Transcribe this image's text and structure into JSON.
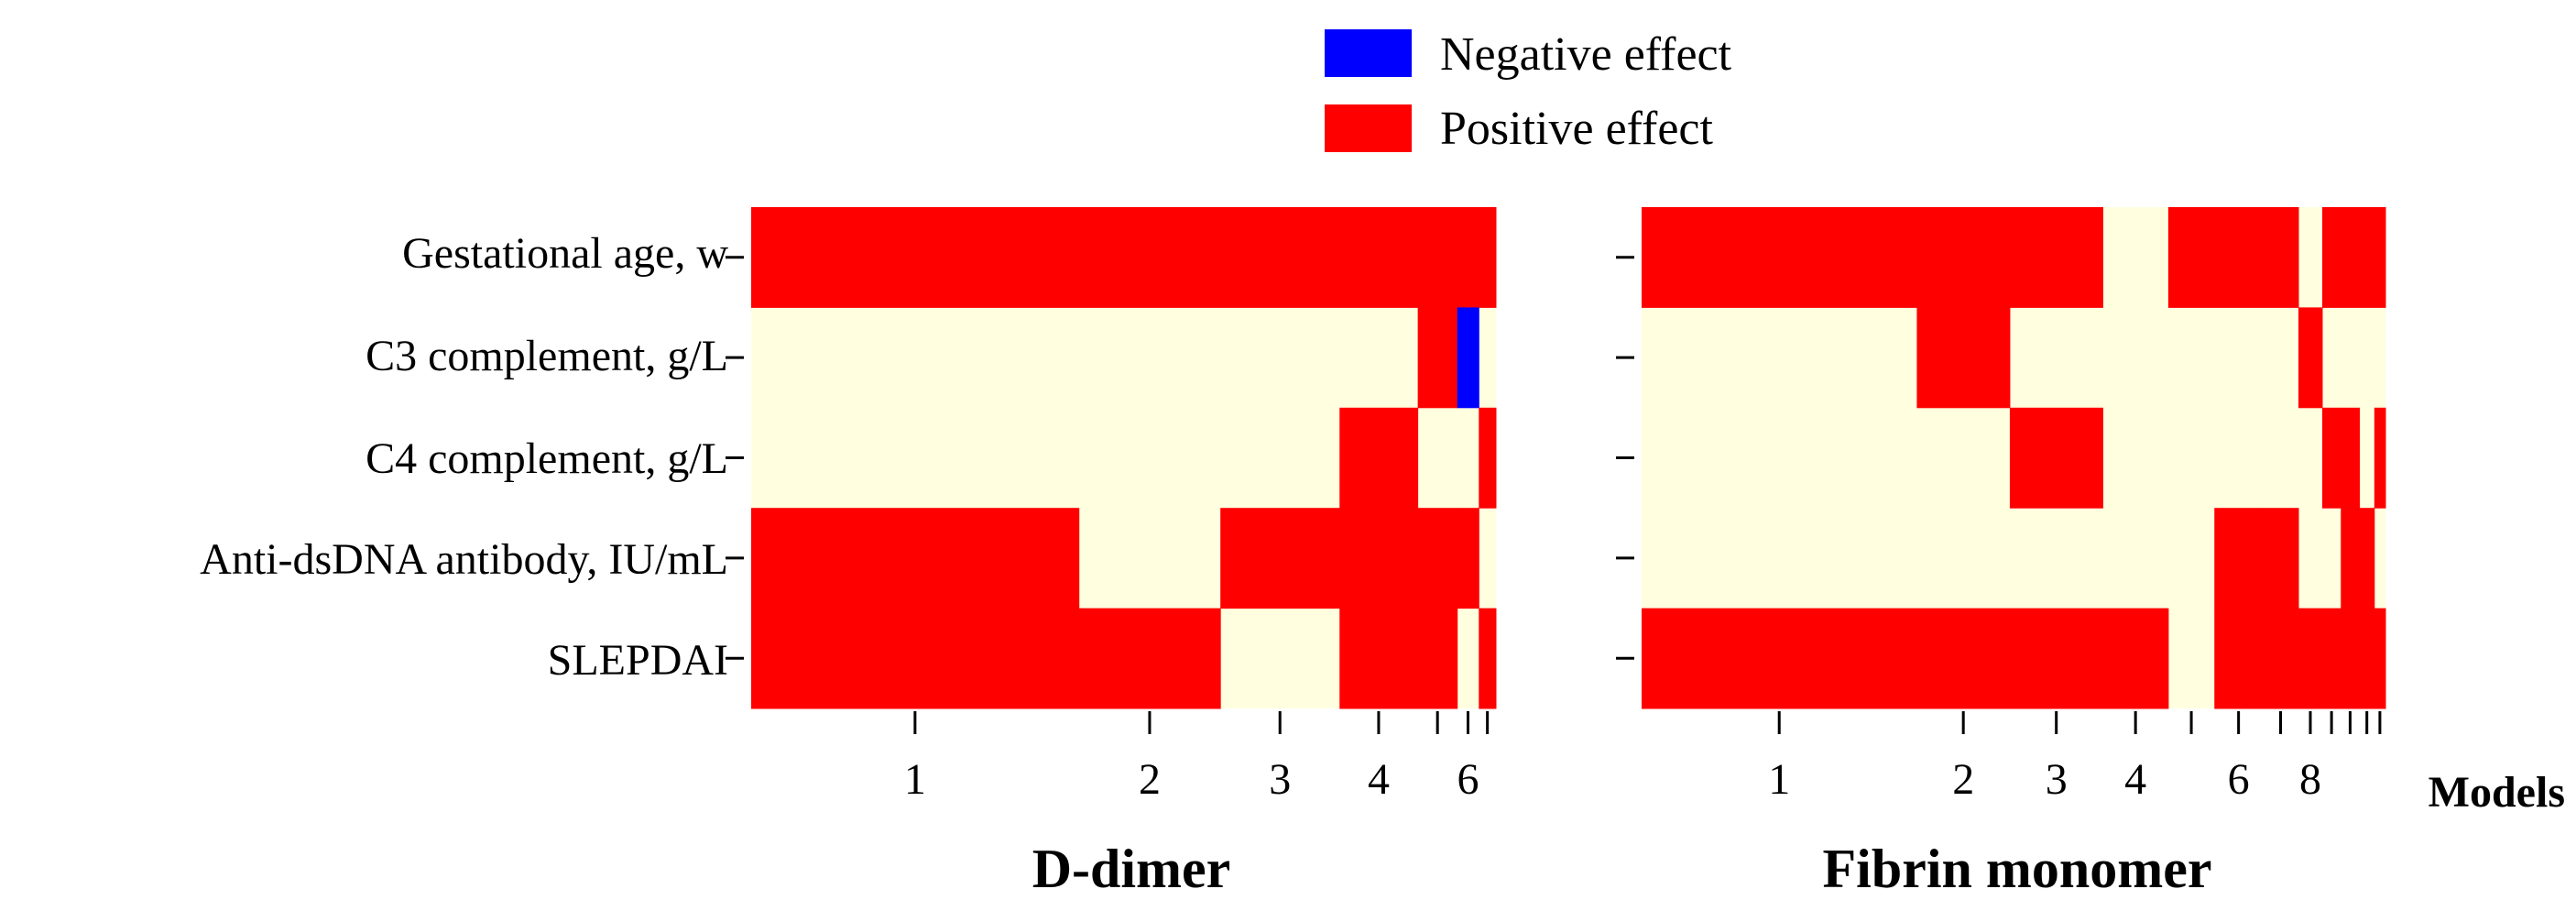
{
  "chart_data": {
    "type": "heatmap",
    "description_label": "Models",
    "legend": {
      "placement": "top-center",
      "entries": [
        {
          "key": "negative",
          "label": "Negative effect",
          "color": "#0000ff"
        },
        {
          "key": "positive",
          "label": "Positive effect",
          "color": "#ff0000"
        }
      ]
    },
    "background_color": "#ffffe0",
    "variables": [
      "Gestational age, w",
      "C3 complement, g/L",
      "C4 complement, g/L",
      "Anti-dsDNA antibody, IU/mL",
      "SLEPDAI"
    ],
    "xlabel": "Models",
    "panels": [
      {
        "title": "D-dimer",
        "tick_labels": [
          "1",
          "2",
          "3",
          "4",
          "6"
        ],
        "tick_models": [
          1,
          2,
          3,
          4,
          6
        ],
        "models": [
          {
            "model": 1,
            "cum_prob_start": 0.0,
            "cum_prob_end": 0.44,
            "effects": [
              "positive",
              null,
              null,
              "positive",
              "positive"
            ]
          },
          {
            "model": 2,
            "cum_prob_start": 0.44,
            "cum_prob_end": 0.63,
            "effects": [
              "positive",
              null,
              null,
              null,
              "positive"
            ]
          },
          {
            "model": 3,
            "cum_prob_start": 0.63,
            "cum_prob_end": 0.79,
            "effects": [
              "positive",
              null,
              null,
              "positive",
              null
            ]
          },
          {
            "model": 4,
            "cum_prob_start": 0.79,
            "cum_prob_end": 0.895,
            "effects": [
              "positive",
              null,
              "positive",
              "positive",
              "positive"
            ]
          },
          {
            "model": 5,
            "cum_prob_start": 0.895,
            "cum_prob_end": 0.948,
            "effects": [
              "positive",
              "positive",
              null,
              "positive",
              "positive"
            ]
          },
          {
            "model": 6,
            "cum_prob_start": 0.948,
            "cum_prob_end": 0.977,
            "effects": [
              "positive",
              "negative",
              null,
              "positive",
              null
            ]
          },
          {
            "model": 7,
            "cum_prob_start": 0.977,
            "cum_prob_end": 1.0,
            "effects": [
              "positive",
              null,
              "positive",
              null,
              "positive"
            ]
          }
        ]
      },
      {
        "title": "Fibrin monomer",
        "tick_labels": [
          "1",
          "2",
          "3",
          "4",
          "6",
          "8"
        ],
        "tick_models": [
          1,
          2,
          3,
          4,
          6,
          8
        ],
        "models": [
          {
            "model": 1,
            "cum_prob_start": 0.0,
            "cum_prob_end": 0.37,
            "effects": [
              "positive",
              null,
              null,
              null,
              "positive"
            ]
          },
          {
            "model": 2,
            "cum_prob_start": 0.37,
            "cum_prob_end": 0.495,
            "effects": [
              "positive",
              "positive",
              null,
              null,
              "positive"
            ]
          },
          {
            "model": 3,
            "cum_prob_start": 0.495,
            "cum_prob_end": 0.62,
            "effects": [
              "positive",
              null,
              "positive",
              null,
              "positive"
            ]
          },
          {
            "model": 4,
            "cum_prob_start": 0.62,
            "cum_prob_end": 0.708,
            "effects": [
              null,
              null,
              null,
              null,
              "positive"
            ]
          },
          {
            "model": 5,
            "cum_prob_start": 0.708,
            "cum_prob_end": 0.77,
            "effects": [
              "positive",
              null,
              null,
              null,
              null
            ]
          },
          {
            "model": 6,
            "cum_prob_start": 0.77,
            "cum_prob_end": 0.835,
            "effects": [
              "positive",
              null,
              null,
              "positive",
              "positive"
            ]
          },
          {
            "model": 7,
            "cum_prob_start": 0.835,
            "cum_prob_end": 0.883,
            "effects": [
              "positive",
              null,
              null,
              "positive",
              "positive"
            ]
          },
          {
            "model": 8,
            "cum_prob_start": 0.883,
            "cum_prob_end": 0.915,
            "effects": [
              null,
              "positive",
              null,
              null,
              "positive"
            ]
          },
          {
            "model": 9,
            "cum_prob_start": 0.915,
            "cum_prob_end": 0.94,
            "effects": [
              "positive",
              null,
              "positive",
              null,
              "positive"
            ]
          },
          {
            "model": 10,
            "cum_prob_start": 0.94,
            "cum_prob_end": 0.965,
            "effects": [
              "positive",
              null,
              "positive",
              "positive",
              "positive"
            ]
          },
          {
            "model": 11,
            "cum_prob_start": 0.965,
            "cum_prob_end": 0.985,
            "effects": [
              "positive",
              null,
              null,
              "positive",
              "positive"
            ]
          },
          {
            "model": 12,
            "cum_prob_start": 0.985,
            "cum_prob_end": 1.0,
            "effects": [
              "positive",
              null,
              "positive",
              null,
              "positive"
            ]
          }
        ]
      }
    ]
  }
}
